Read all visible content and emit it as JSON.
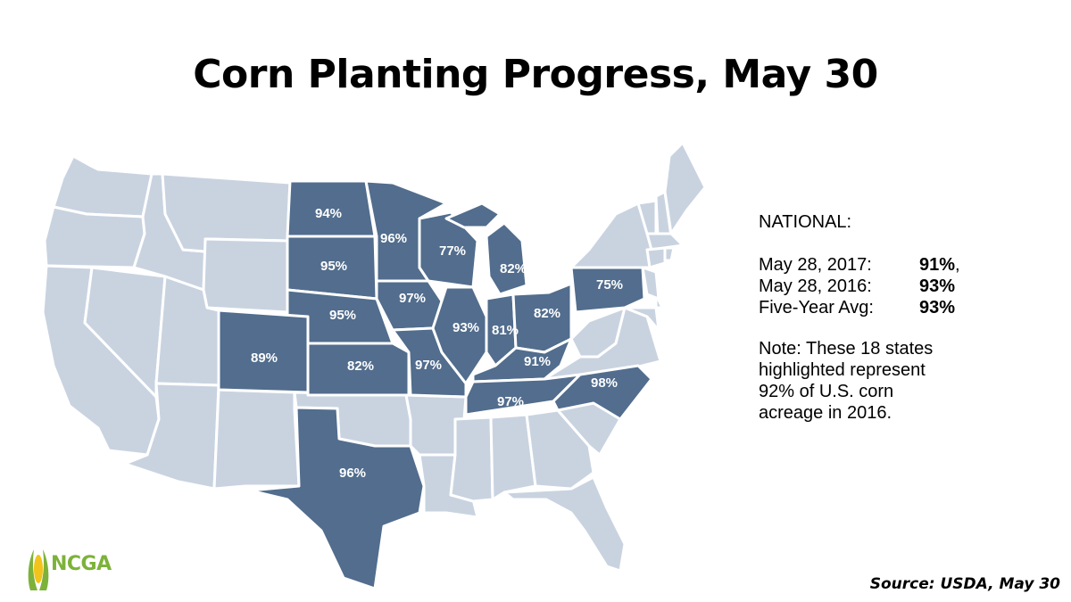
{
  "title": "Corn Planting Progress, May 30",
  "colors": {
    "highlight": "#526D8D",
    "other": "#C9D3E0",
    "border": "#FFFFFF",
    "logo_green": "#7DB23A",
    "logo_yellow": "#F2C31B"
  },
  "map": {
    "highlighted_states": [
      {
        "state": "North Dakota",
        "progress": "94%"
      },
      {
        "state": "South Dakota",
        "progress": "95%"
      },
      {
        "state": "Nebraska",
        "progress": "95%"
      },
      {
        "state": "Kansas",
        "progress": "82%"
      },
      {
        "state": "Colorado",
        "progress": "89%"
      },
      {
        "state": "Texas",
        "progress": "96%"
      },
      {
        "state": "Minnesota",
        "progress": "96%"
      },
      {
        "state": "Iowa",
        "progress": "97%"
      },
      {
        "state": "Missouri",
        "progress": "97%"
      },
      {
        "state": "Wisconsin",
        "progress": "77%"
      },
      {
        "state": "Illinois",
        "progress": "93%"
      },
      {
        "state": "Michigan",
        "progress": "82%"
      },
      {
        "state": "Indiana",
        "progress": "81%"
      },
      {
        "state": "Ohio",
        "progress": "82%"
      },
      {
        "state": "Kentucky",
        "progress": "91%"
      },
      {
        "state": "Tennessee",
        "progress": "97%"
      },
      {
        "state": "North Carolina",
        "progress": "98%"
      },
      {
        "state": "Pennsylvania",
        "progress": "75%"
      }
    ]
  },
  "panel": {
    "heading": "NATIONAL:",
    "rows": [
      {
        "label": "May 28, 2017:",
        "value": "91%",
        "suffix": ","
      },
      {
        "label": "May 28, 2016:",
        "value": "93%",
        "suffix": ""
      },
      {
        "label": "Five-Year Avg:",
        "value": "93%",
        "suffix": ""
      }
    ],
    "note": "Note: These 18 states highlighted represent 92% of U.S. corn acreage in 2016."
  },
  "source": "Source: USDA, May 30",
  "logo": {
    "text": "NCGA"
  }
}
